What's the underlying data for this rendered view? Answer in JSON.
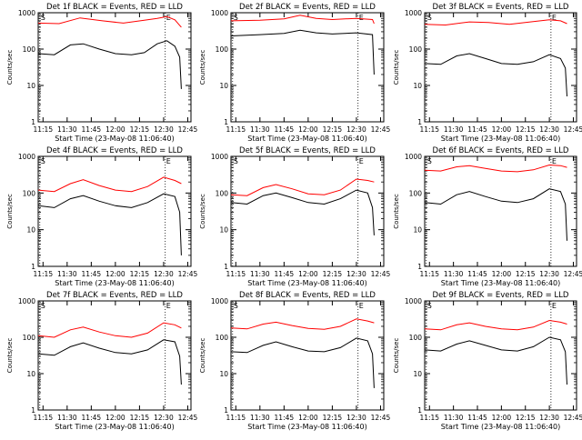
{
  "chart_data": [
    {
      "type": "line",
      "title": "Det 1f BLACK = Events, RED = LLD",
      "xlabel": "Start Time (23-May-08 11:06:40)",
      "ylabel": "Counts/sec",
      "x_ticks": [
        "11:15",
        "11:30",
        "11:45",
        "12:00",
        "12:15",
        "12:30",
        "12:45"
      ],
      "y_ticks": [
        "1",
        "10",
        "100",
        "1000"
      ],
      "yscale": "log",
      "ylim": [
        1,
        1000
      ],
      "xlim": [
        "11:12",
        "12:47"
      ],
      "markers": [
        "S",
        "E"
      ],
      "series": [
        {
          "color": "#ff0000",
          "x": [
            "11:12",
            "11:25",
            "11:38",
            "11:52",
            "12:05",
            "12:18",
            "12:26",
            "12:32",
            "12:37",
            "12:40",
            "12:41"
          ],
          "y": [
            520,
            500,
            720,
            600,
            520,
            620,
            700,
            780,
            640,
            450,
            400
          ]
        },
        {
          "color": "#000000",
          "x": [
            "11:12",
            "11:22",
            "11:32",
            "11:40",
            "11:50",
            "12:00",
            "12:10",
            "12:18",
            "12:26",
            "12:32",
            "12:37",
            "12:40",
            "12:41"
          ],
          "y": [
            75,
            70,
            130,
            140,
            100,
            75,
            70,
            80,
            140,
            170,
            120,
            60,
            8
          ]
        }
      ]
    },
    {
      "type": "line",
      "title": "Det 2f BLACK = Events, RED = LLD",
      "xlabel": "Start Time (23-May-08 11:06:40)",
      "ylabel": "Counts/sec",
      "x_ticks": [
        "11:15",
        "11:30",
        "11:45",
        "12:00",
        "12:15",
        "12:30",
        "12:45"
      ],
      "y_ticks": [
        "1",
        "10",
        "100",
        "1000"
      ],
      "yscale": "log",
      "ylim": [
        1,
        1000
      ],
      "xlim": [
        "11:12",
        "12:47"
      ],
      "markers": [
        "S",
        "E"
      ],
      "series": [
        {
          "color": "#ff0000",
          "x": [
            "11:12",
            "11:30",
            "11:45",
            "11:55",
            "12:05",
            "12:15",
            "12:30",
            "12:40",
            "12:41"
          ],
          "y": [
            600,
            620,
            680,
            850,
            700,
            650,
            700,
            650,
            500
          ]
        },
        {
          "color": "#000000",
          "x": [
            "11:12",
            "11:30",
            "11:45",
            "11:55",
            "12:05",
            "12:15",
            "12:30",
            "12:40",
            "12:41"
          ],
          "y": [
            230,
            250,
            270,
            330,
            280,
            260,
            280,
            250,
            20
          ]
        }
      ]
    },
    {
      "type": "line",
      "title": "Det 3f BLACK = Events, RED = LLD",
      "xlabel": "Start Time (23-May-08 11:06:40)",
      "ylabel": "Counts/sec",
      "x_ticks": [
        "11:15",
        "11:30",
        "11:45",
        "12:00",
        "12:15",
        "12:30",
        "12:45"
      ],
      "y_ticks": [
        "1",
        "10",
        "100",
        "1000"
      ],
      "yscale": "log",
      "ylim": [
        1,
        1000
      ],
      "xlim": [
        "11:12",
        "12:47"
      ],
      "markers": [
        "S",
        "E"
      ],
      "series": [
        {
          "color": "#ff0000",
          "x": [
            "11:12",
            "11:25",
            "11:40",
            "11:52",
            "12:05",
            "12:18",
            "12:30",
            "12:37",
            "12:41"
          ],
          "y": [
            480,
            460,
            560,
            540,
            480,
            560,
            640,
            600,
            500
          ]
        },
        {
          "color": "#000000",
          "x": [
            "11:12",
            "11:22",
            "11:32",
            "11:40",
            "11:50",
            "12:00",
            "12:10",
            "12:20",
            "12:30",
            "12:37",
            "12:40",
            "12:41"
          ],
          "y": [
            40,
            38,
            65,
            75,
            55,
            40,
            38,
            45,
            70,
            55,
            30,
            5
          ]
        }
      ]
    },
    {
      "type": "line",
      "title": "Det 4f BLACK = Events, RED = LLD",
      "xlabel": "Start Time (23-May-08 11:06:40)",
      "ylabel": "Counts/sec",
      "x_ticks": [
        "11:15",
        "11:30",
        "11:45",
        "12:00",
        "12:15",
        "12:30",
        "12:45"
      ],
      "y_ticks": [
        "1",
        "10",
        "100",
        "1000"
      ],
      "yscale": "log",
      "ylim": [
        1,
        1000
      ],
      "xlim": [
        "11:12",
        "12:47"
      ],
      "markers": [
        "S",
        "E"
      ],
      "series": [
        {
          "color": "#ff0000",
          "x": [
            "11:12",
            "11:22",
            "11:32",
            "11:40",
            "11:50",
            "12:00",
            "12:10",
            "12:20",
            "12:30",
            "12:37",
            "12:41"
          ],
          "y": [
            120,
            110,
            180,
            230,
            160,
            120,
            110,
            150,
            270,
            220,
            180
          ]
        },
        {
          "color": "#000000",
          "x": [
            "11:12",
            "11:22",
            "11:32",
            "11:40",
            "11:50",
            "12:00",
            "12:10",
            "12:20",
            "12:30",
            "12:37",
            "12:40",
            "12:41"
          ],
          "y": [
            45,
            40,
            70,
            85,
            60,
            45,
            40,
            55,
            95,
            80,
            30,
            2
          ]
        }
      ]
    },
    {
      "type": "line",
      "title": "Det 5f BLACK = Events, RED = LLD",
      "xlabel": "Start Time (23-May-08 11:06:40)",
      "ylabel": "Counts/sec",
      "x_ticks": [
        "11:15",
        "11:30",
        "11:45",
        "12:00",
        "12:15",
        "12:30",
        "12:45"
      ],
      "y_ticks": [
        "1",
        "10",
        "100",
        "1000"
      ],
      "yscale": "log",
      "ylim": [
        1,
        1000
      ],
      "xlim": [
        "11:12",
        "12:47"
      ],
      "markers": [
        "S",
        "E"
      ],
      "series": [
        {
          "color": "#ff0000",
          "x": [
            "11:12",
            "11:22",
            "11:32",
            "11:40",
            "11:50",
            "12:00",
            "12:10",
            "12:20",
            "12:30",
            "12:37",
            "12:41"
          ],
          "y": [
            90,
            85,
            140,
            170,
            130,
            95,
            90,
            120,
            240,
            220,
            200
          ]
        },
        {
          "color": "#000000",
          "x": [
            "11:12",
            "11:22",
            "11:32",
            "11:40",
            "11:50",
            "12:00",
            "12:10",
            "12:20",
            "12:30",
            "12:37",
            "12:40",
            "12:41"
          ],
          "y": [
            55,
            50,
            85,
            100,
            75,
            55,
            50,
            70,
            120,
            100,
            40,
            7
          ]
        }
      ]
    },
    {
      "type": "line",
      "title": "Det 6f BLACK = Events, RED = LLD",
      "xlabel": "Start Time (23-May-08 11:06:40)",
      "ylabel": "Counts/sec",
      "x_ticks": [
        "11:15",
        "11:30",
        "11:45",
        "12:00",
        "12:15",
        "12:30",
        "12:45"
      ],
      "y_ticks": [
        "1",
        "10",
        "100",
        "1000"
      ],
      "yscale": "log",
      "ylim": [
        1,
        1000
      ],
      "xlim": [
        "11:12",
        "12:47"
      ],
      "markers": [
        "S",
        "E"
      ],
      "series": [
        {
          "color": "#ff0000",
          "x": [
            "11:12",
            "11:22",
            "11:32",
            "11:40",
            "11:50",
            "12:00",
            "12:10",
            "12:20",
            "12:30",
            "12:37",
            "12:41"
          ],
          "y": [
            420,
            400,
            520,
            560,
            470,
            400,
            380,
            430,
            580,
            560,
            500
          ]
        },
        {
          "color": "#000000",
          "x": [
            "11:12",
            "11:22",
            "11:32",
            "11:40",
            "11:50",
            "12:00",
            "12:10",
            "12:20",
            "12:30",
            "12:37",
            "12:40",
            "12:41"
          ],
          "y": [
            55,
            50,
            90,
            110,
            80,
            60,
            55,
            70,
            130,
            110,
            50,
            5
          ]
        }
      ]
    },
    {
      "type": "line",
      "title": "Det 7f BLACK = Events, RED = LLD",
      "xlabel": "Start Time (23-May-08 11:06:40)",
      "ylabel": "Counts/sec",
      "x_ticks": [
        "11:15",
        "11:30",
        "11:45",
        "12:00",
        "12:15",
        "12:30",
        "12:45"
      ],
      "y_ticks": [
        "1",
        "10",
        "100",
        "1000"
      ],
      "yscale": "log",
      "ylim": [
        1,
        1000
      ],
      "xlim": [
        "11:12",
        "12:47"
      ],
      "markers": [
        "S",
        "E"
      ],
      "series": [
        {
          "color": "#ff0000",
          "x": [
            "11:12",
            "11:22",
            "11:32",
            "11:40",
            "11:50",
            "12:00",
            "12:10",
            "12:20",
            "12:30",
            "12:37",
            "12:41"
          ],
          "y": [
            110,
            100,
            160,
            190,
            140,
            110,
            100,
            130,
            250,
            220,
            180
          ]
        },
        {
          "color": "#000000",
          "x": [
            "11:12",
            "11:22",
            "11:32",
            "11:40",
            "11:50",
            "12:00",
            "12:10",
            "12:20",
            "12:30",
            "12:37",
            "12:40",
            "12:41"
          ],
          "y": [
            35,
            32,
            55,
            70,
            50,
            38,
            35,
            45,
            85,
            75,
            30,
            5
          ]
        }
      ]
    },
    {
      "type": "line",
      "title": "Det 8f BLACK = Events, RED = LLD",
      "xlabel": "Start Time (23-May-08 11:06:40)",
      "ylabel": "Counts/sec",
      "x_ticks": [
        "11:15",
        "11:30",
        "11:45",
        "12:00",
        "12:15",
        "12:30",
        "12:45"
      ],
      "y_ticks": [
        "1",
        "10",
        "100",
        "1000"
      ],
      "yscale": "log",
      "ylim": [
        1,
        1000
      ],
      "xlim": [
        "11:12",
        "12:47"
      ],
      "markers": [
        "S",
        "E"
      ],
      "series": [
        {
          "color": "#ff0000",
          "x": [
            "11:12",
            "11:22",
            "11:32",
            "11:40",
            "11:50",
            "12:00",
            "12:10",
            "12:20",
            "12:30",
            "12:37",
            "12:41"
          ],
          "y": [
            180,
            170,
            230,
            260,
            210,
            175,
            165,
            200,
            320,
            280,
            250
          ]
        },
        {
          "color": "#000000",
          "x": [
            "11:12",
            "11:22",
            "11:32",
            "11:40",
            "11:50",
            "12:00",
            "12:10",
            "12:20",
            "12:30",
            "12:37",
            "12:40",
            "12:41"
          ],
          "y": [
            40,
            38,
            60,
            75,
            55,
            42,
            40,
            52,
            95,
            80,
            35,
            4
          ]
        }
      ]
    },
    {
      "type": "line",
      "title": "Det 9f BLACK = Events, RED = LLD",
      "xlabel": "Start Time (23-May-08 11:06:40)",
      "ylabel": "Counts/sec",
      "x_ticks": [
        "11:15",
        "11:30",
        "11:45",
        "12:00",
        "12:15",
        "12:30",
        "12:45"
      ],
      "y_ticks": [
        "1",
        "10",
        "100",
        "1000"
      ],
      "yscale": "log",
      "ylim": [
        1,
        1000
      ],
      "xlim": [
        "11:12",
        "12:47"
      ],
      "markers": [
        "S",
        "E"
      ],
      "series": [
        {
          "color": "#ff0000",
          "x": [
            "11:12",
            "11:22",
            "11:32",
            "11:40",
            "11:50",
            "12:00",
            "12:10",
            "12:20",
            "12:30",
            "12:37",
            "12:41"
          ],
          "y": [
            170,
            160,
            220,
            250,
            200,
            170,
            160,
            190,
            290,
            260,
            230
          ]
        },
        {
          "color": "#000000",
          "x": [
            "11:12",
            "11:22",
            "11:32",
            "11:40",
            "11:50",
            "12:00",
            "12:10",
            "12:20",
            "12:30",
            "12:37",
            "12:40",
            "12:41"
          ],
          "y": [
            45,
            42,
            65,
            80,
            60,
            45,
            42,
            55,
            100,
            85,
            40,
            5
          ]
        }
      ]
    }
  ]
}
